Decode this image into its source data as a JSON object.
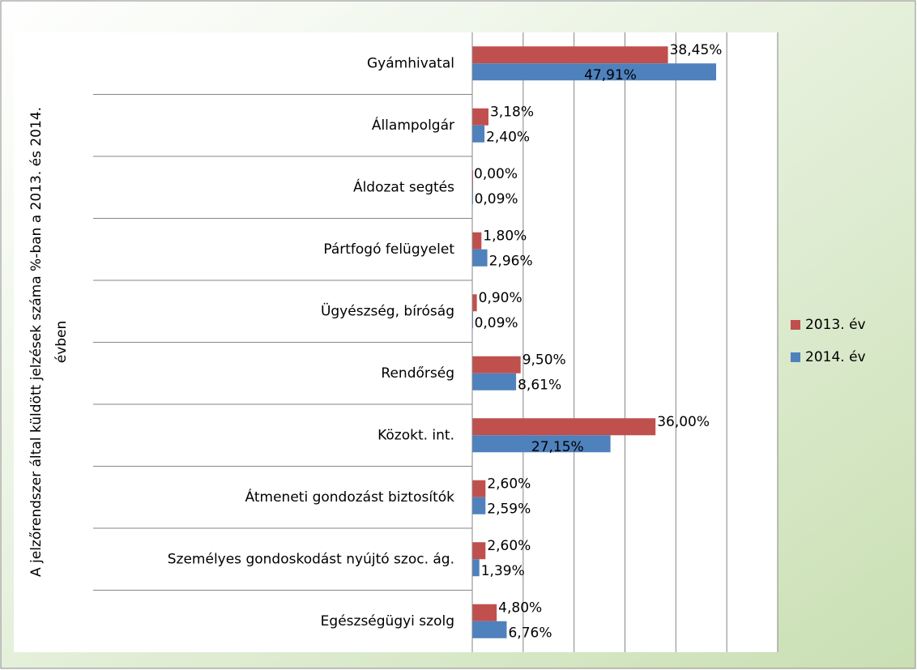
{
  "chart_data": {
    "type": "hbar",
    "y_label": "A jelzőrendszer által küldött jelzések száma %-ban a 2013. és 2014.",
    "y_label_line2": "évben",
    "categories": [
      "Gyámhivatal",
      "Állampolgár",
      "Áldozat segtés",
      "Pártfogó felügyelet",
      "Ügyészség, bíróság",
      "Rendőrség",
      "Közokt. int.",
      "Átmeneti gondozást biztosítók",
      "Személyes gondoskodást nyújtó szoc. ág.",
      "Egészségügyi szolg"
    ],
    "series": [
      {
        "name": "2013. év",
        "color": "#c0504d",
        "values": [
          38.45,
          3.18,
          0.0,
          1.8,
          0.9,
          9.5,
          36.0,
          2.6,
          2.6,
          4.8
        ],
        "value_labels": [
          "38,45%",
          "3,18%",
          "0,00%",
          "1,80%",
          "0,90%",
          "9,50%",
          "36,00%",
          "2,60%",
          "2,60%",
          "4,80%"
        ]
      },
      {
        "name": "2014. év",
        "color": "#4f81bd",
        "values": [
          47.91,
          2.4,
          0.09,
          2.96,
          0.09,
          8.61,
          27.15,
          2.59,
          1.39,
          6.76
        ],
        "value_labels": [
          "47,91%",
          "2,40%",
          "0,09%",
          "2,96%",
          "0,09%",
          "8,61%",
          "27,15%",
          "2,59%",
          "1,39%",
          "6,76%"
        ]
      }
    ],
    "xlim": [
      0,
      60
    ],
    "xticks": [
      0,
      10,
      20,
      30,
      40,
      50,
      60
    ],
    "grid": true,
    "legend": "right"
  }
}
